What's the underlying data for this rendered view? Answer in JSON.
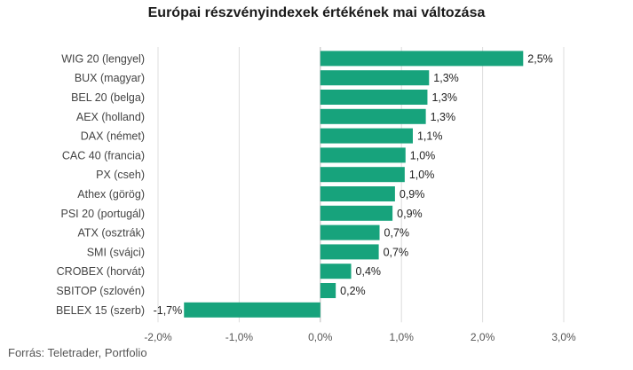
{
  "title": "Európai részvényindexek értékének mai változása",
  "source": "Forrás: Teletrader, Portfolio",
  "colors": {
    "bar": "#17a37c",
    "grid": "#dddddd",
    "zero_line": "#bbbbbb"
  },
  "chart_data": {
    "type": "bar",
    "orientation": "horizontal",
    "title": "Európai részvényindexek értékének mai változása",
    "categories": [
      "WIG 20 (lengyel)",
      "BUX (magyar)",
      "BEL 20 (belga)",
      "AEX (holland)",
      "DAX (német)",
      "CAC 40 (francia)",
      "PX (cseh)",
      "Athex (görög)",
      "PSI 20 (portugál)",
      "ATX (osztrák)",
      "SMI (svájci)",
      "CROBEX (horvát)",
      "SBITOP (szlovén)",
      "BELEX 15 (szerb)"
    ],
    "values": [
      2.5,
      1.34,
      1.32,
      1.3,
      1.14,
      1.05,
      1.04,
      0.92,
      0.89,
      0.73,
      0.72,
      0.38,
      0.19,
      -1.68
    ],
    "value_labels": [
      "2,5%",
      "1,3%",
      "1,3%",
      "1,3%",
      "1,1%",
      "1,0%",
      "1,0%",
      "0,9%",
      "0,9%",
      "0,7%",
      "0,7%",
      "0,4%",
      "0,2%",
      "-1,7%"
    ],
    "xlim": [
      -2.0,
      3.0
    ],
    "xticks": [
      -2.0,
      -1.0,
      0.0,
      1.0,
      2.0,
      3.0
    ],
    "xtick_labels": [
      "-2,0%",
      "-1,0%",
      "0,0%",
      "1,0%",
      "2,0%",
      "3,0%"
    ],
    "xlabel": "",
    "ylabel": "",
    "grid": true,
    "legend": "none"
  }
}
